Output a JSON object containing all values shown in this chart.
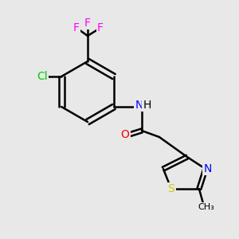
{
  "background_color": "#e8e8e8",
  "bond_color": "#000000",
  "atom_colors": {
    "F": "#ff00ff",
    "Cl": "#00cc00",
    "N": "#0000ff",
    "O": "#ff0000",
    "S": "#cccc00",
    "C": "#000000",
    "H": "#000000"
  },
  "figsize": [
    3.0,
    3.0
  ],
  "dpi": 100
}
